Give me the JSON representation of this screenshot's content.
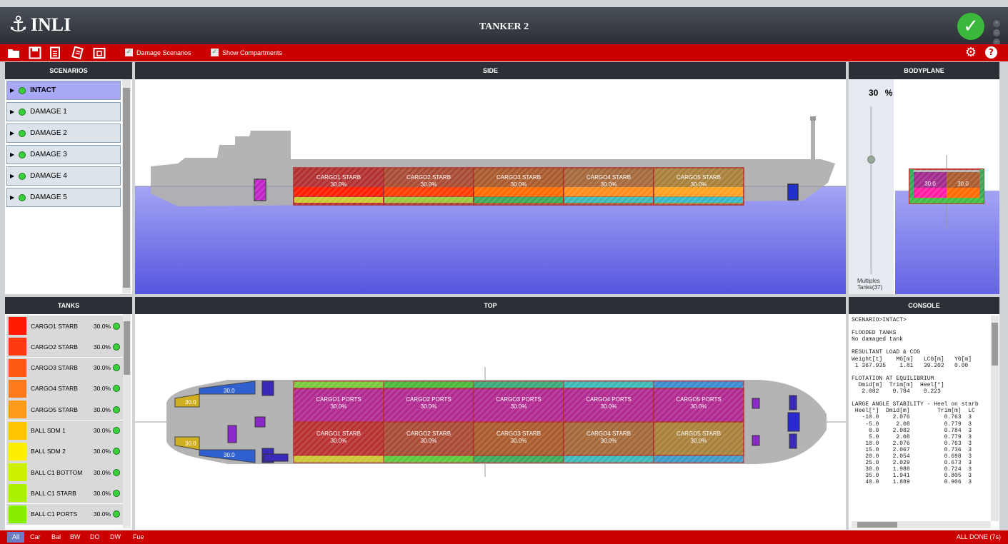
{
  "app": {
    "logo_text": "INLI",
    "title": "TANKER 2",
    "status_icon": "check-icon"
  },
  "toolbar": {
    "icons": [
      "folder-open-icon",
      "save-icon",
      "document-icon",
      "report-icon",
      "export-icon"
    ],
    "damage_scenarios_label": "Damage Scenarios",
    "show_compartments_label": "Show Compartments",
    "damage_scenarios_checked": true,
    "show_compartments_checked": true,
    "right_icons": [
      "gear-icon",
      "help-icon"
    ]
  },
  "panels": {
    "scenarios": "SCENARIOS",
    "side": "SIDE",
    "bodyplane": "BODYPLANE",
    "tanks": "TANKS",
    "top": "TOP",
    "console": "CONSOLE"
  },
  "scenarios": [
    {
      "label": "INTACT",
      "selected": true
    },
    {
      "label": "DAMAGE 1",
      "selected": false
    },
    {
      "label": "DAMAGE 2",
      "selected": false
    },
    {
      "label": "DAMAGE 3",
      "selected": false
    },
    {
      "label": "DAMAGE 4",
      "selected": false
    },
    {
      "label": "DAMAGE 5",
      "selected": false
    }
  ],
  "side_view": {
    "tanks": [
      {
        "label": "CARGO1 STARB",
        "value": "30.0%",
        "color": "#b23030",
        "band": "#ff1a00"
      },
      {
        "label": "CARGO2 STARB",
        "value": "30.0%",
        "color": "#a84a34",
        "band": "#ff3a00"
      },
      {
        "label": "CARGO3 STARB",
        "value": "30.0%",
        "color": "#a85a2c",
        "band": "#ff6a00"
      },
      {
        "label": "CARGO4 STARB",
        "value": "30.0%",
        "color": "#a4683a",
        "band": "#ff8c1a"
      },
      {
        "label": "CARGO5 STARB",
        "value": "30.0%",
        "color": "#a8803a",
        "band": "#ffa020"
      }
    ]
  },
  "bodyplane": {
    "percent": "30",
    "percent_unit": "%",
    "slider_value": 0.3,
    "left_value": "30.0",
    "right_value": "30.0",
    "footer_line1": "Multiples",
    "footer_line2": "Tanks(37)"
  },
  "tanks": [
    {
      "name": "CARGO1 STARB",
      "value": "30.0%",
      "color": "#ff1a00"
    },
    {
      "name": "CARGO2 STARB",
      "value": "30.0%",
      "color": "#ff3a10"
    },
    {
      "name": "CARGO3 STARB",
      "value": "30.0%",
      "color": "#ff5a14"
    },
    {
      "name": "CARGO4 STARB",
      "value": "30.0%",
      "color": "#ff7a1a"
    },
    {
      "name": "CARGO5 STARB",
      "value": "30.0%",
      "color": "#ff9a1a"
    },
    {
      "name": "BALL SDM 1",
      "value": "30.0%",
      "color": "#ffc400"
    },
    {
      "name": "BALL SDM 2",
      "value": "30.0%",
      "color": "#ffee00"
    },
    {
      "name": "BALL C1 BOTTOM",
      "value": "30.0%",
      "color": "#ccf000"
    },
    {
      "name": "BALL C1 STARB",
      "value": "30.0%",
      "color": "#aaf000"
    },
    {
      "name": "BALL C1 PORTS",
      "value": "30.0%",
      "color": "#88ee00"
    }
  ],
  "top_view": {
    "ports": [
      {
        "label": "CARGO1 PORTS",
        "value": "30.0%"
      },
      {
        "label": "CARGO2 PORTS",
        "value": "30.0%"
      },
      {
        "label": "CARGO3 PORTS",
        "value": "30.0%"
      },
      {
        "label": "CARGO4 PORTS",
        "value": "30.0%"
      },
      {
        "label": "CARGO5 PORTS",
        "value": "30.0%"
      }
    ],
    "starb": [
      {
        "label": "CARGO1 STARB",
        "value": "30.0%"
      },
      {
        "label": "CARGO2 STARB",
        "value": "30.0%"
      },
      {
        "label": "CARGO3 STARB",
        "value": "30.0%"
      },
      {
        "label": "CARGO4 STARB",
        "value": "30.0%"
      },
      {
        "label": "CARGO5 STARB",
        "value": "30.0%"
      }
    ],
    "aft_values": [
      "30.0",
      "30.0",
      "30.0",
      "30.0"
    ]
  },
  "console": {
    "lines": [
      "SCENARIO>INTACT>",
      "",
      "FLOODED TANKS",
      "No damaged tank",
      "",
      "RESULTANT LOAD & COG",
      "Weight[t]    MG[m]   LCG[m]   YG[m]",
      " 1 367.935    1.81   39.202   0.00",
      "",
      "FLOTATION AT EQUILIBRIUM",
      "  Dmid[m]  Trim[m]  Heel[°]",
      "   2.082    0.784    0.223",
      "",
      "LARGE ANGLE STABILITY - Heel on starb",
      " Heel[°]  Dmid[m]        Trim[m]  LC",
      "   -10.0    2.076          0.763  3",
      "    -5.0     2.08          0.779  3",
      "     0.0    2.082          0.784  3",
      "     5.0     2.08          0.779  3",
      "    10.0    2.076          0.763  3",
      "    15.0    2.067          0.736  3",
      "    20.0    2.054          0.698  3",
      "    25.0    2.029          0.673  3",
      "    30.0    1.988          0.724  3",
      "    35.0    1.941          0.805  3",
      "    40.0    1.889          0.906  3"
    ]
  },
  "statusbar": {
    "filters": [
      "All",
      "Car",
      "Bal",
      "BW",
      "DO",
      "DW",
      "Fue"
    ],
    "active": "All",
    "status": "ALL DONE (7s)"
  }
}
